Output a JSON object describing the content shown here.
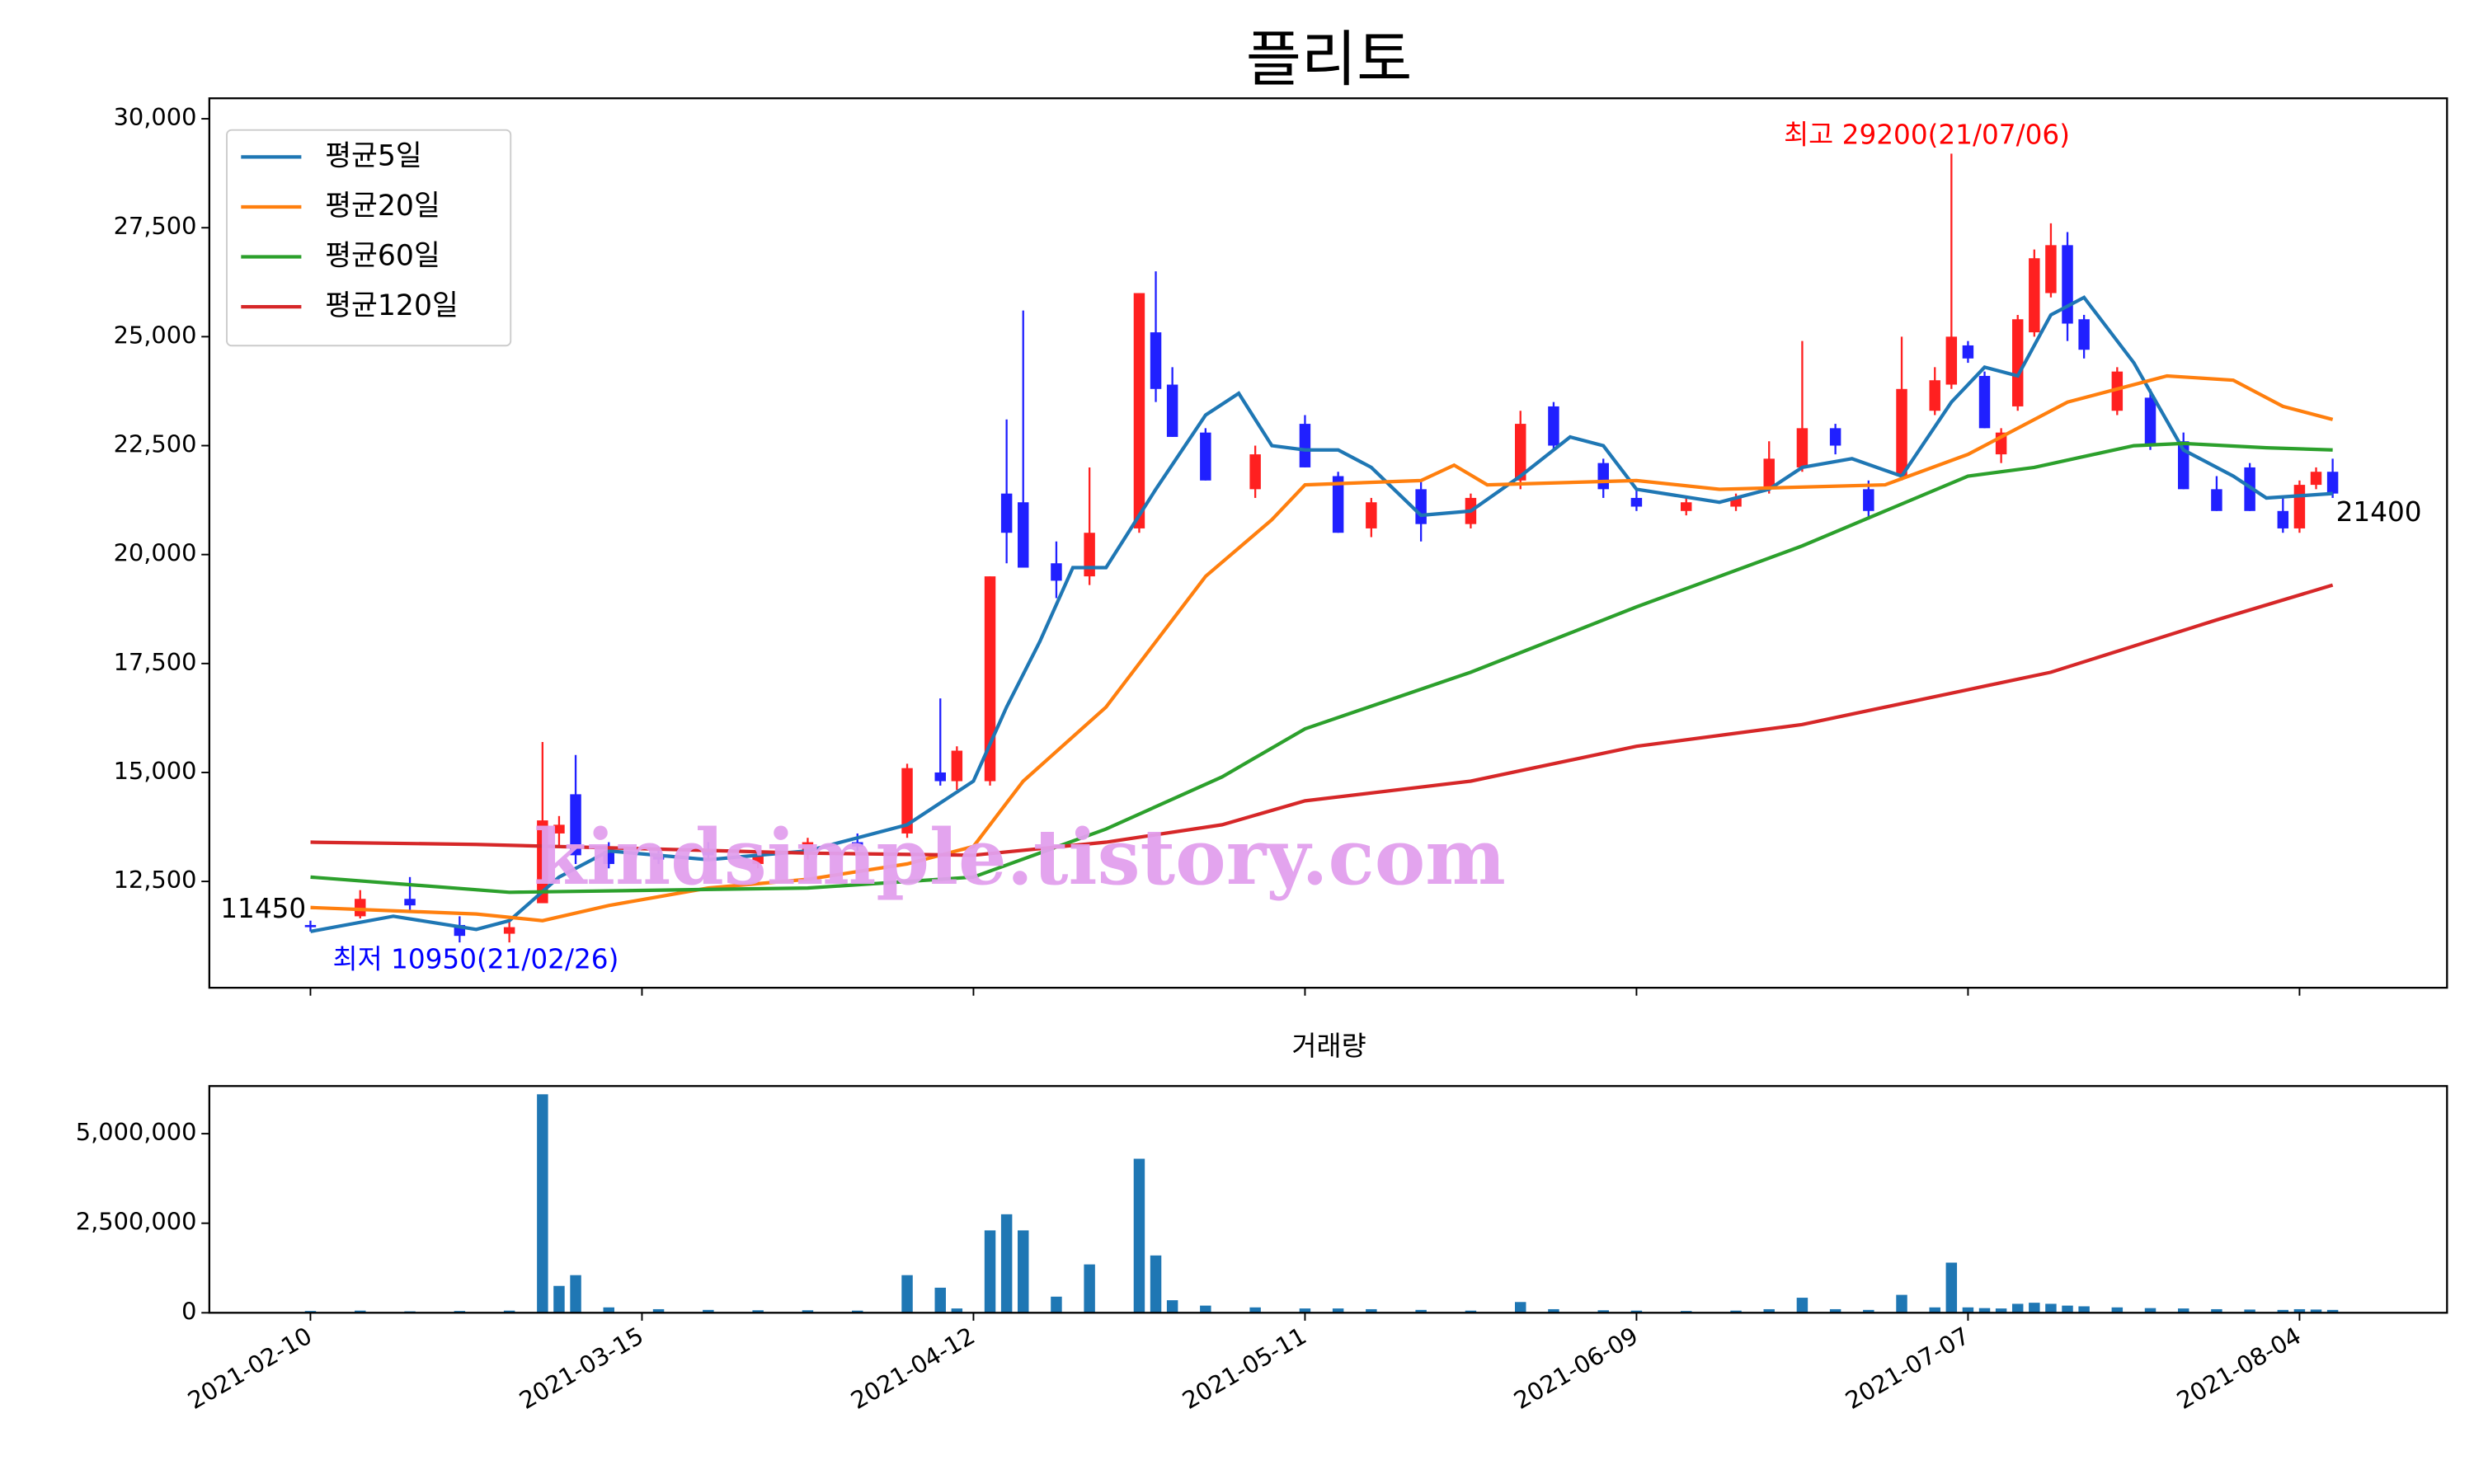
{
  "chart_data": [
    {
      "type": "candlestick",
      "title": "플리토",
      "watermark": "kindsimple.tistory.com",
      "x": [
        0,
        3,
        6,
        9,
        12,
        14,
        15,
        16,
        18,
        21,
        24,
        27,
        30,
        33,
        36,
        38,
        39,
        41,
        42,
        43,
        45,
        47,
        50,
        51,
        52,
        54,
        57,
        60,
        62,
        64,
        67,
        70,
        73,
        75,
        78,
        80,
        83,
        86,
        88,
        90,
        92,
        94,
        96,
        98,
        99,
        100,
        101,
        102,
        103,
        104,
        105,
        106,
        107,
        109,
        111,
        113,
        115,
        117,
        119,
        120,
        121,
        122
      ],
      "open": [
        11500,
        11700,
        12100,
        11500,
        11300,
        12000,
        13600,
        14500,
        13200,
        13100,
        13200,
        12900,
        13200,
        13400,
        13600,
        15000,
        14800,
        14800,
        21400,
        21200,
        19800,
        19500,
        20600,
        25100,
        23900,
        22800,
        21500,
        23000,
        21800,
        20600,
        21500,
        20700,
        21700,
        23400,
        22100,
        21300,
        21000,
        21100,
        21500,
        22000,
        22900,
        21500,
        21800,
        23300,
        23900,
        24800,
        24100,
        22300,
        23400,
        25100,
        26000,
        27100,
        25400,
        23300,
        23600,
        22600,
        21500,
        22000,
        21000,
        20600,
        21600,
        21900
      ],
      "high": [
        11600,
        12300,
        12600,
        11700,
        11600,
        15700,
        14000,
        15400,
        13400,
        13300,
        13400,
        13200,
        13500,
        13600,
        15200,
        16700,
        15600,
        19500,
        23100,
        25600,
        20300,
        22000,
        26000,
        26500,
        24300,
        22900,
        22500,
        23200,
        21900,
        21300,
        21700,
        21400,
        23300,
        23500,
        22200,
        21500,
        21300,
        21400,
        22600,
        24900,
        23000,
        21700,
        25000,
        24300,
        29200,
        24900,
        24200,
        22900,
        25500,
        27000,
        27600,
        27400,
        25500,
        24300,
        23800,
        22800,
        21800,
        22100,
        21300,
        21700,
        22000,
        22200
      ],
      "low": [
        11350,
        11650,
        11800,
        11100,
        11100,
        12000,
        13300,
        12900,
        12800,
        12900,
        13000,
        12800,
        13000,
        13200,
        13500,
        14700,
        14600,
        14700,
        19800,
        19700,
        19000,
        19300,
        20500,
        23500,
        22700,
        21700,
        21300,
        22000,
        20500,
        20400,
        20300,
        20600,
        21500,
        22400,
        21300,
        21000,
        20900,
        21000,
        21400,
        21900,
        22300,
        20800,
        21700,
        23200,
        23800,
        24400,
        22900,
        22100,
        23300,
        25000,
        25900,
        24900,
        24500,
        23200,
        22400,
        21500,
        21000,
        21000,
        20500,
        20500,
        21500,
        21300
      ],
      "close": [
        11450,
        12100,
        11950,
        11250,
        11450,
        13900,
        13800,
        13100,
        12900,
        13000,
        13100,
        13100,
        13400,
        13300,
        15100,
        14800,
        15500,
        19500,
        20500,
        19700,
        19400,
        20500,
        26000,
        23800,
        22700,
        21700,
        22300,
        22000,
        20500,
        21200,
        20700,
        21300,
        23000,
        22500,
        21500,
        21100,
        21200,
        21300,
        22200,
        22900,
        22500,
        21000,
        23800,
        24000,
        25000,
        24500,
        22900,
        22800,
        25400,
        26800,
        27100,
        25300,
        24700,
        24200,
        22500,
        21500,
        21000,
        21000,
        20600,
        21600,
        21900,
        21400
      ],
      "up_color": "#ff2020",
      "down_color": "#2020ff",
      "series": [
        {
          "name": "평균5일",
          "color": "#1f77b4",
          "x": [
            0,
            5,
            10,
            12,
            15,
            18,
            24,
            30,
            36,
            40,
            42,
            44,
            46,
            48,
            51,
            54,
            56,
            58,
            60,
            62,
            64,
            67,
            70,
            73,
            76,
            78,
            80,
            85,
            88,
            90,
            93,
            96,
            99,
            101,
            103,
            105,
            107,
            110,
            113,
            116,
            118,
            122
          ],
          "values": [
            11350,
            11700,
            11400,
            11600,
            12600,
            13200,
            13000,
            13200,
            13800,
            14800,
            16500,
            18000,
            19700,
            19700,
            21500,
            23200,
            23700,
            22500,
            22400,
            22400,
            22000,
            20900,
            21000,
            21800,
            22700,
            22500,
            21500,
            21200,
            21500,
            22000,
            22200,
            21800,
            23500,
            24300,
            24100,
            25500,
            25900,
            24400,
            22400,
            21800,
            21300,
            21400
          ]
        },
        {
          "name": "평균20일",
          "color": "#ff7f0e",
          "x": [
            0,
            10,
            14,
            18,
            24,
            30,
            36,
            40,
            43,
            48,
            49,
            54,
            58,
            60,
            67,
            69,
            71,
            80,
            85,
            95,
            100,
            106,
            110,
            112,
            116,
            119,
            122
          ],
          "values": [
            11900,
            11750,
            11600,
            11950,
            12350,
            12550,
            12900,
            13300,
            14800,
            16500,
            17000,
            19500,
            20800,
            21600,
            21700,
            22050,
            21600,
            21700,
            21500,
            21600,
            22300,
            23500,
            23900,
            24100,
            24000,
            23400,
            23100
          ]
        },
        {
          "name": "평균60일",
          "color": "#2ca02c",
          "x": [
            0,
            12,
            30,
            40,
            48,
            55,
            60,
            70,
            80,
            90,
            100,
            104,
            110,
            113,
            118,
            122
          ],
          "values": [
            12600,
            12250,
            12350,
            12600,
            13700,
            14900,
            16000,
            17300,
            18800,
            20200,
            21800,
            22000,
            22500,
            22550,
            22450,
            22400
          ]
        },
        {
          "name": "평균120일",
          "color": "#d62728",
          "x": [
            0,
            10,
            20,
            30,
            40,
            48,
            55,
            60,
            70,
            80,
            90,
            100,
            105,
            110,
            115,
            122
          ],
          "values": [
            13400,
            13350,
            13250,
            13150,
            13100,
            13400,
            13800,
            14350,
            14800,
            15600,
            16100,
            16900,
            17300,
            17900,
            18500,
            19300
          ]
        }
      ],
      "annotations": [
        {
          "text": "최고 29200(21/07/06)",
          "color": "#ff0000"
        },
        {
          "text": "최저 10950(21/02/26)",
          "color": "#0000ff"
        },
        {
          "text": "11450",
          "color": "#000000"
        },
        {
          "text": "21400",
          "color": "#000000"
        }
      ],
      "xlim": [
        -6.1,
        128.9
      ],
      "ylim": [
        10060,
        30470
      ],
      "yticks": [
        {
          "value": 12500,
          "label": "12,500"
        },
        {
          "value": 15000,
          "label": "15,000"
        },
        {
          "value": 17500,
          "label": "17,500"
        },
        {
          "value": 20000,
          "label": "20,000"
        },
        {
          "value": 22500,
          "label": "22,500"
        },
        {
          "value": 25000,
          "label": "25,000"
        },
        {
          "value": 27500,
          "label": "27,500"
        },
        {
          "value": 30000,
          "label": "30,000"
        }
      ],
      "legend": "upper left"
    },
    {
      "type": "bar",
      "title": "거래량",
      "color": "#1f77b4",
      "x": [
        0,
        3,
        6,
        9,
        12,
        14,
        15,
        16,
        18,
        21,
        24,
        27,
        30,
        33,
        36,
        38,
        39,
        41,
        42,
        43,
        45,
        47,
        50,
        51,
        52,
        54,
        57,
        60,
        62,
        64,
        67,
        70,
        73,
        75,
        78,
        80,
        83,
        86,
        88,
        90,
        92,
        94,
        96,
        98,
        99,
        100,
        101,
        102,
        103,
        104,
        105,
        106,
        107,
        109,
        111,
        113,
        115,
        117,
        119,
        120,
        121,
        122
      ],
      "values": [
        50000,
        60000,
        40000,
        50000,
        60000,
        6100000,
        750000,
        1050000,
        150000,
        100000,
        80000,
        70000,
        70000,
        60000,
        1050000,
        700000,
        120000,
        2300000,
        2750000,
        2300000,
        450000,
        1350000,
        4300000,
        1600000,
        350000,
        200000,
        150000,
        120000,
        120000,
        100000,
        80000,
        60000,
        300000,
        100000,
        70000,
        60000,
        50000,
        60000,
        100000,
        420000,
        100000,
        80000,
        500000,
        150000,
        1400000,
        150000,
        130000,
        120000,
        250000,
        280000,
        250000,
        200000,
        180000,
        150000,
        130000,
        120000,
        100000,
        90000,
        80000,
        100000,
        90000,
        80000
      ],
      "xlim": [
        -6.1,
        128.9
      ],
      "ylim": [
        0,
        6330000
      ],
      "yticks": [
        0,
        {
          "value": 2500000,
          "label": "2,500,000"
        },
        {
          "value": 5000000,
          "label": "5,000,000"
        }
      ],
      "xticks": [
        {
          "value": 0,
          "label": "2021-02-10"
        },
        {
          "value": 20,
          "label": "2021-03-15"
        },
        {
          "value": 40,
          "label": "2021-04-12"
        },
        {
          "value": 60,
          "label": "2021-05-11"
        },
        {
          "value": 80,
          "label": "2021-06-09"
        },
        {
          "value": 100,
          "label": "2021-07-07"
        },
        {
          "value": 120,
          "label": "2021-08-04"
        }
      ]
    }
  ]
}
